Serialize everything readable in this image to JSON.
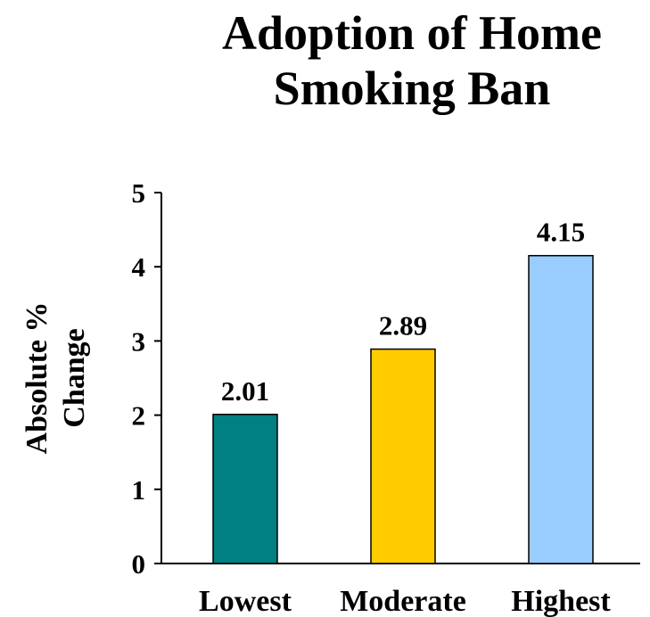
{
  "chart_data": {
    "type": "bar",
    "title_lines": [
      "Adoption of Home",
      "Smoking Ban"
    ],
    "ylabel_lines": [
      "Absolute %",
      "Change"
    ],
    "xlabel": "",
    "categories": [
      "Lowest",
      "Moderate",
      "Highest"
    ],
    "values": [
      2.01,
      2.89,
      4.15
    ],
    "data_labels": [
      "2.01",
      "2.89",
      "4.15"
    ],
    "colors": [
      "#008080",
      "#FFCC00",
      "#99CCFF"
    ],
    "ylim": [
      0,
      5
    ],
    "yticks": [
      "0",
      "1",
      "2",
      "3",
      "4",
      "5"
    ],
    "grid": false,
    "legend": "none"
  }
}
